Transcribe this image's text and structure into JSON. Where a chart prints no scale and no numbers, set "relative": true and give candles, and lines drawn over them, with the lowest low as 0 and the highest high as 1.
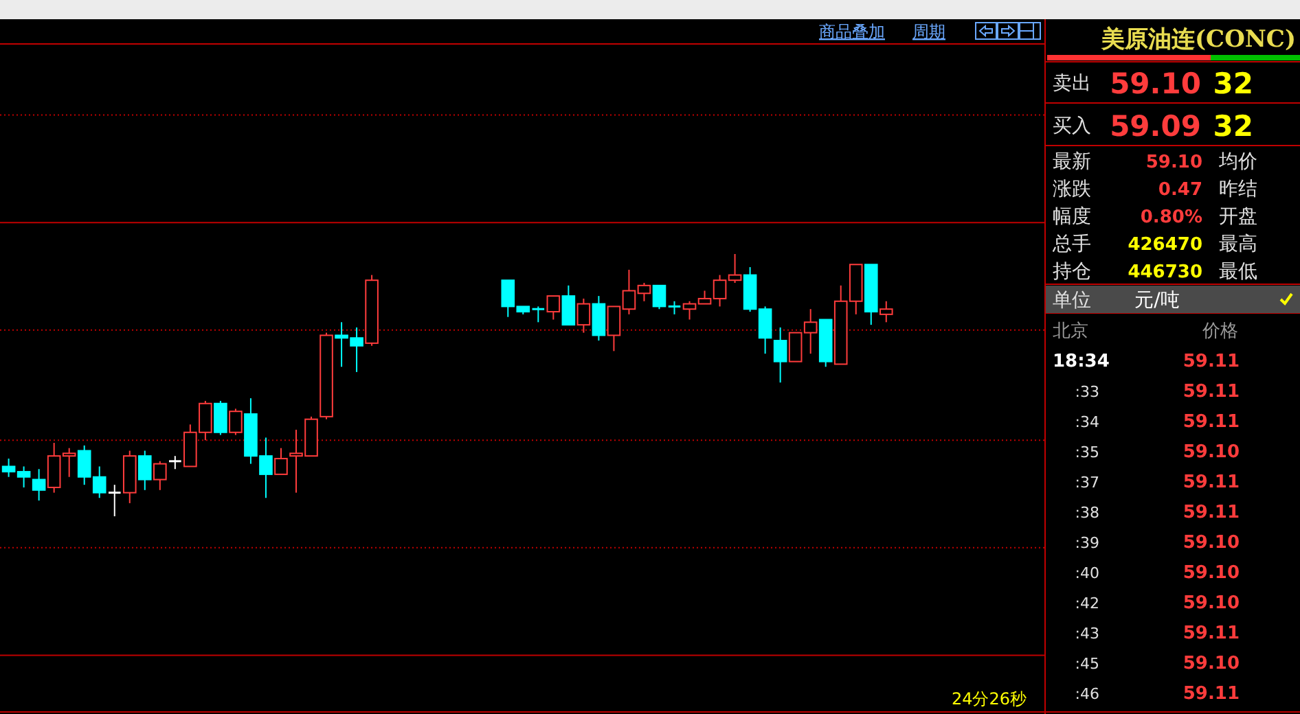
{
  "chart_data": [
    {
      "type": "candlestick",
      "relative": true,
      "ref_lines": [
        {
          "axis": "y",
          "value": 1.53,
          "line_style": "dotted",
          "color": "#c00000"
        },
        {
          "axis": "y",
          "value": 1.12,
          "line_style": "solid",
          "color": "#c00000"
        },
        {
          "axis": "y",
          "value": 0.71,
          "line_style": "dotted",
          "color": "#c00000"
        },
        {
          "axis": "y",
          "value": 0.29,
          "line_style": "dotted",
          "color": "#c00000"
        },
        {
          "axis": "y",
          "value": -0.12,
          "line_style": "dotted",
          "color": "#c00000"
        },
        {
          "axis": "y",
          "value": -0.53,
          "line_style": "solid",
          "color": "#c00000"
        }
      ],
      "annotations": [
        "商品叠加",
        "周期",
        "24分26秒"
      ],
      "categories": [
        null,
        null,
        null,
        null,
        null,
        null,
        null,
        null,
        null,
        null,
        null,
        null,
        null,
        null,
        null,
        null,
        null,
        null,
        null,
        null,
        null,
        null,
        null,
        null,
        null,
        null,
        null,
        null,
        null,
        null,
        null,
        null,
        null,
        null,
        null,
        null,
        null,
        null,
        null,
        null,
        null,
        null,
        null,
        null,
        null,
        null,
        null,
        null,
        null,
        null,
        null,
        null,
        null,
        null,
        null,
        null,
        null,
        null,
        null,
        null,
        null,
        null,
        null,
        null,
        null,
        null,
        null,
        null,
        null
      ],
      "ohlc": [
        [
          0.19,
          0.22,
          0.15,
          0.17
        ],
        [
          0.17,
          0.19,
          0.11,
          0.15
        ],
        [
          0.14,
          0.18,
          0.06,
          0.1
        ],
        [
          0.11,
          0.28,
          0.09,
          0.23
        ],
        [
          0.23,
          0.26,
          0.15,
          0.24
        ],
        [
          0.25,
          0.27,
          0.12,
          0.15
        ],
        [
          0.15,
          0.19,
          0.07,
          0.09
        ],
        [
          0.09,
          0.12,
          0,
          0.09
        ],
        [
          0.09,
          0.25,
          0.05,
          0.23
        ],
        [
          0.23,
          0.25,
          0.1,
          0.14
        ],
        [
          0.14,
          0.21,
          0.1,
          0.2
        ],
        [
          0.21,
          0.23,
          0.18,
          0.21
        ],
        [
          0.19,
          0.35,
          0.19,
          0.32
        ],
        [
          0.32,
          0.44,
          0.29,
          0.43
        ],
        [
          0.43,
          0.44,
          0.31,
          0.32
        ],
        [
          0.32,
          0.41,
          0.31,
          0.4
        ],
        [
          0.39,
          0.45,
          0.2,
          0.23
        ],
        [
          0.23,
          0.3,
          0.07,
          0.16
        ],
        [
          0.16,
          0.26,
          0.16,
          0.22
        ],
        [
          0.23,
          0.33,
          0.09,
          0.24
        ],
        [
          0.23,
          0.38,
          0.23,
          0.37
        ],
        [
          0.38,
          0.7,
          0.37,
          0.69
        ],
        [
          0.69,
          0.74,
          0.57,
          0.68
        ],
        [
          0.68,
          0.72,
          0.55,
          0.65
        ],
        [
          0.66,
          0.92,
          0.65,
          0.9
        ],
        null,
        null,
        null,
        null,
        null,
        null,
        null,
        null,
        [
          0.9,
          0.9,
          0.76,
          0.8
        ],
        [
          0.8,
          0.8,
          0.77,
          0.78
        ],
        [
          0.79,
          0.8,
          0.74,
          0.79
        ],
        [
          0.78,
          0.84,
          0.75,
          0.84
        ],
        [
          0.84,
          0.88,
          0.73,
          0.73
        ],
        [
          0.73,
          0.83,
          0.7,
          0.81
        ],
        [
          0.81,
          0.84,
          0.67,
          0.69
        ],
        [
          0.69,
          0.8,
          0.63,
          0.8
        ],
        [
          0.79,
          0.94,
          0.77,
          0.86
        ],
        [
          0.85,
          0.89,
          0.82,
          0.88
        ],
        [
          0.88,
          0.88,
          0.79,
          0.8
        ],
        [
          0.8,
          0.82,
          0.77,
          0.8
        ],
        [
          0.79,
          0.82,
          0.75,
          0.81
        ],
        [
          0.81,
          0.86,
          0.81,
          0.83
        ],
        [
          0.83,
          0.92,
          0.8,
          0.9
        ],
        [
          0.9,
          1,
          0.89,
          0.92
        ],
        [
          0.92,
          0.95,
          0.78,
          0.79
        ],
        [
          0.79,
          0.8,
          0.62,
          0.68
        ],
        [
          0.67,
          0.72,
          0.51,
          0.59
        ],
        [
          0.59,
          0.7,
          0.59,
          0.7
        ],
        [
          0.7,
          0.79,
          0.62,
          0.74
        ],
        [
          0.75,
          0.75,
          0.57,
          0.59
        ],
        [
          0.58,
          0.88,
          0.58,
          0.82
        ],
        [
          0.82,
          0.96,
          0.77,
          0.96
        ],
        [
          0.96,
          0.96,
          0.73,
          0.78
        ],
        [
          0.77,
          0.82,
          0.74,
          0.79
        ],
        null,
        null,
        null,
        null,
        null,
        null,
        null,
        null,
        null,
        null
      ],
      "colors": [
        "#00ffff",
        "#00ffff",
        "#00ffff",
        "#ff3c3c",
        "#ff3c3c",
        "#00ffff",
        "#00ffff",
        "#ffffff",
        "#ff3c3c",
        "#00ffff",
        "#ff3c3c",
        "#ffffff",
        "#ff3c3c",
        "#ff3c3c",
        "#00ffff",
        "#ff3c3c",
        "#00ffff",
        "#00ffff",
        "#ff3c3c",
        "#ff3c3c",
        "#ff3c3c",
        "#ff3c3c",
        "#00ffff",
        "#00ffff",
        "#ff3c3c",
        null,
        null,
        null,
        null,
        null,
        null,
        null,
        null,
        "#00ffff",
        "#00ffff",
        "#00ffff",
        "#ff3c3c",
        "#00ffff",
        "#ff3c3c",
        "#00ffff",
        "#ff3c3c",
        "#ff3c3c",
        "#ff3c3c",
        "#00ffff",
        "#00ffff",
        "#ff3c3c",
        "#ff3c3c",
        "#ff3c3c",
        "#ff3c3c",
        "#00ffff",
        "#00ffff",
        "#00ffff",
        "#ff3c3c",
        "#ff3c3c",
        "#00ffff",
        "#ff3c3c",
        "#ff3c3c",
        "#00ffff",
        "#ff3c3c",
        null,
        null,
        null,
        null,
        null,
        null,
        null,
        null,
        null,
        null
      ]
    },
    {
      "type": "other",
      "title": "美原油连(CONC)",
      "y_categories": [
        "卖出",
        "买入",
        "最新",
        "涨跌",
        "幅度",
        "总手",
        "持仓",
        "单位"
      ],
      "cell_labels": [
        [
          "59.10",
          "32"
        ],
        [
          "59.09",
          "32"
        ],
        [
          "59.10",
          "均价"
        ],
        [
          "0.47",
          "昨结"
        ],
        [
          "0.80%",
          "开盘"
        ],
        [
          "426470",
          "最高"
        ],
        [
          "446730",
          "最低"
        ],
        [
          "元/吨",
          null
        ]
      ]
    },
    {
      "type": "other",
      "categories": [
        "北京",
        "价格"
      ],
      "cell_labels": [
        [
          "18:34",
          "59.11"
        ],
        [
          ":33",
          "59.11"
        ],
        [
          ":34",
          "59.11"
        ],
        [
          ":35",
          "59.10"
        ],
        [
          ":37",
          "59.11"
        ],
        [
          ":38",
          "59.11"
        ],
        [
          ":39",
          "59.10"
        ],
        [
          ":40",
          "59.10"
        ],
        [
          ":42",
          "59.10"
        ],
        [
          ":43",
          "59.11"
        ],
        [
          ":45",
          "59.10"
        ],
        [
          ":46",
          "59.11"
        ]
      ]
    }
  ]
}
